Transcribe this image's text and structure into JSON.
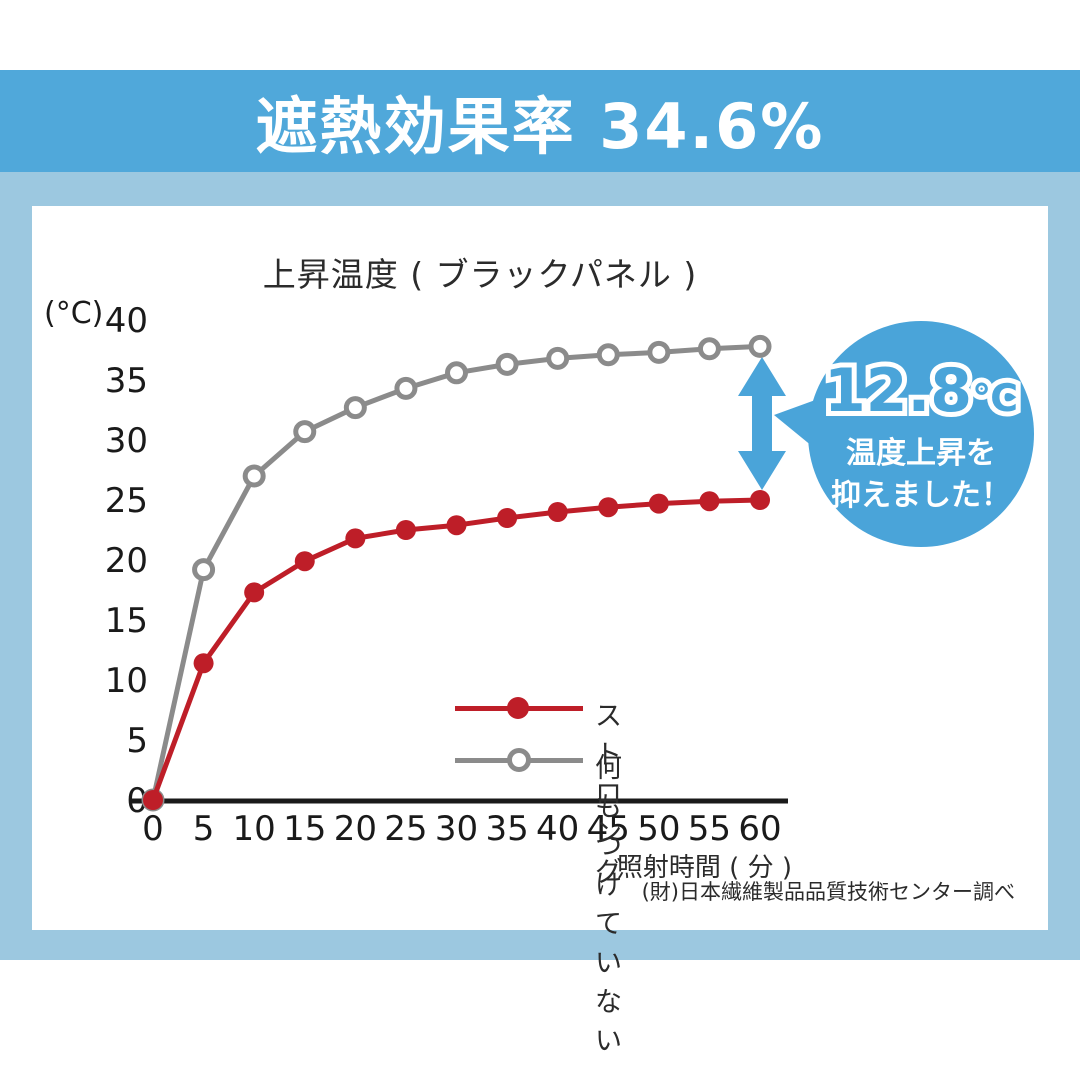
{
  "banner": {
    "title": "遮熱効果率 34.6%"
  },
  "chart_title": "上昇温度 ( ブラックパネル )",
  "y_axis_unit": "(°C)",
  "x_axis_label": "照射時間 ( 分 )",
  "source_note": "(財)日本繊維製品品質技術センター調べ",
  "legend": [
    {
      "label": "ストロング",
      "color": "#BE1E28",
      "marker": "filled"
    },
    {
      "label": "何もつけていない",
      "color": "#8B8B8B",
      "marker": "open"
    }
  ],
  "callout": {
    "value": "12.8",
    "unit": "℃",
    "line1": "温度上昇を",
    "line2": "抑えました！"
  },
  "colors": {
    "banner_blue": "#50A8DA",
    "background_blue": "#9CC8E0",
    "accent_blue": "#4AA4D9",
    "series_red": "#BE1E28",
    "series_gray": "#8B8B8B",
    "axis_black": "#1A1A1A"
  },
  "chart_data": {
    "type": "line",
    "title": "上昇温度 ( ブラックパネル )",
    "xlabel": "照射時間 ( 分 )",
    "ylabel": "(°C)",
    "x": [
      0,
      5,
      10,
      15,
      20,
      25,
      30,
      35,
      40,
      45,
      50,
      55,
      60
    ],
    "series": [
      {
        "name": "ストロング",
        "color": "#BE1E28",
        "marker": "filled",
        "values": [
          0,
          11.4,
          17.3,
          19.9,
          21.8,
          22.5,
          22.9,
          23.5,
          24.0,
          24.4,
          24.7,
          24.9,
          25.0
        ]
      },
      {
        "name": "何もつけていない",
        "color": "#8B8B8B",
        "marker": "open",
        "values": [
          0,
          19.2,
          27.0,
          30.7,
          32.7,
          34.3,
          35.6,
          36.3,
          36.8,
          37.1,
          37.3,
          37.6,
          37.8
        ]
      }
    ],
    "ylim": [
      0,
      40
    ],
    "yticks": [
      0,
      5,
      10,
      15,
      20,
      25,
      30,
      35,
      40
    ],
    "xticks": [
      0,
      5,
      10,
      15,
      20,
      25,
      30,
      35,
      40,
      45,
      50,
      55,
      60
    ],
    "grid": false,
    "legend_position": "inside-bottom-right",
    "annotation": "12.8℃ 温度上昇を抑えました！"
  }
}
